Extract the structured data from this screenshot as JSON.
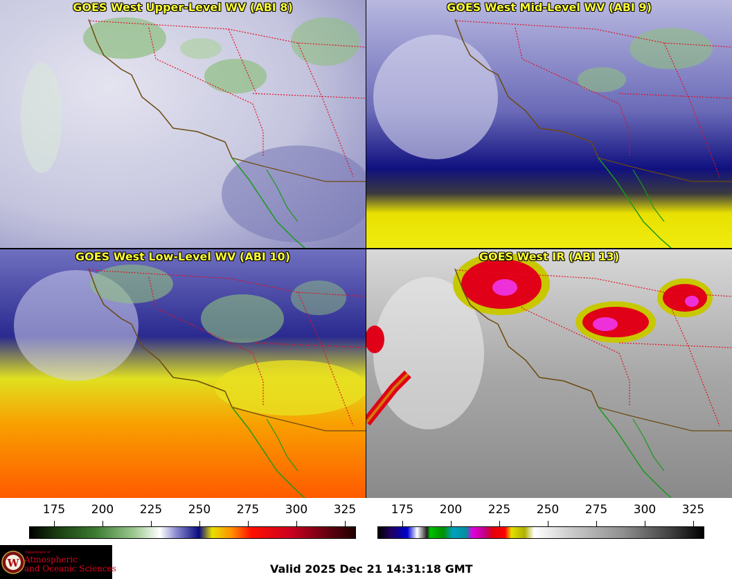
{
  "panels": [
    {
      "title": "GOES West Upper-Level WV (ABI 8)"
    },
    {
      "title": "GOES West Mid-Level WV (ABI 9)"
    },
    {
      "title": "GOES West Low-Level WV (ABI 10)"
    },
    {
      "title": "GOES West IR (ABI 13)"
    }
  ],
  "colorbars": {
    "wv_ticks": [
      "175",
      "200",
      "225",
      "250",
      "275",
      "300",
      "325"
    ],
    "ir_ticks": [
      "175",
      "200",
      "225",
      "250",
      "275",
      "300",
      "325"
    ]
  },
  "logo": {
    "line1": "Department of",
    "line2": "Atmospheric",
    "line3": "and Oceanic Sciences",
    "seal": "W"
  },
  "footer": {
    "valid": "Valid 2025 Dec 21 14:31:18 GMT"
  },
  "colors": {
    "title_text": "#ffff33",
    "state_border": "#e01020",
    "coast": "#6b4a10",
    "mexico_coast": "#1a9a1a"
  }
}
